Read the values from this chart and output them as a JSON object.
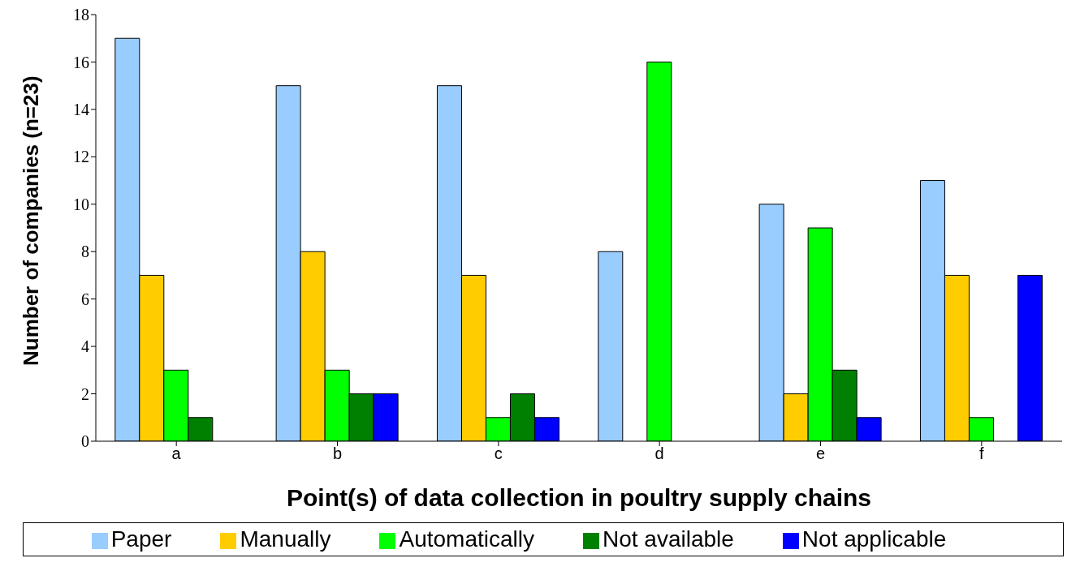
{
  "chart_data": {
    "type": "bar",
    "xlabel": "Point(s) of data collection in poultry supply chains",
    "ylabel": "Number of companies (n=23)",
    "categories": [
      "a",
      "b",
      "c",
      "d",
      "e",
      "f"
    ],
    "series": [
      {
        "name": "Paper",
        "color": "#99ccff",
        "values": [
          17,
          15,
          15,
          8,
          10,
          11
        ]
      },
      {
        "name": "Manually",
        "color": "#ffcc00",
        "values": [
          7,
          8,
          7,
          0,
          2,
          7
        ]
      },
      {
        "name": "Automatically",
        "color": "#00ff00",
        "values": [
          3,
          3,
          1,
          16,
          9,
          1
        ]
      },
      {
        "name": "Not available",
        "color": "#008000",
        "values": [
          1,
          2,
          2,
          0,
          3,
          0
        ]
      },
      {
        "name": "Not applicable",
        "color": "#0000ff",
        "values": [
          0,
          2,
          1,
          0,
          1,
          7
        ]
      }
    ],
    "ylim": [
      0,
      18
    ],
    "yticks": [
      0,
      2,
      4,
      6,
      8,
      10,
      12,
      14,
      16,
      18
    ],
    "legend": "bottom"
  }
}
